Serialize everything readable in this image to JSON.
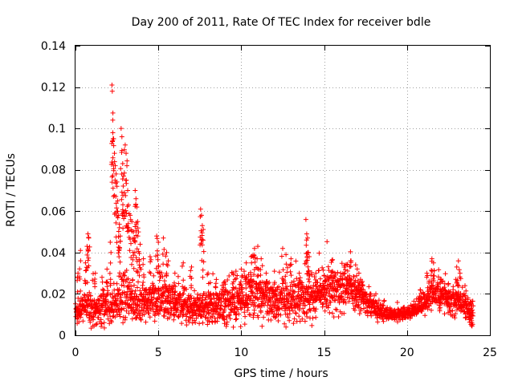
{
  "chart_data": {
    "type": "scatter",
    "title": "Day 200 of 2011, Rate Of TEC Index for receiver bdle",
    "xlabel": "GPS time / hours",
    "ylabel": "ROTI / TECUs",
    "xlim": [
      0,
      25
    ],
    "ylim": [
      0,
      0.14
    ],
    "xticks": [
      "0",
      "5",
      "10",
      "15",
      "20",
      "25"
    ],
    "yticks": [
      "0",
      "0.02",
      "0.04",
      "0.06",
      "0.08",
      "0.1",
      "0.12",
      "0.14"
    ],
    "grid": true,
    "marker": "+",
    "series_color": "#ff0000",
    "baseline_profile": {
      "x": [
        0,
        0.5,
        1,
        1.5,
        2,
        2.5,
        3,
        3.5,
        4,
        4.5,
        5,
        5.5,
        6,
        6.5,
        7,
        7.5,
        8,
        8.5,
        9,
        9.5,
        10,
        10.5,
        11,
        11.5,
        12,
        12.5,
        13,
        13.5,
        14,
        14.5,
        15,
        15.5,
        16,
        16.5,
        17,
        17.5,
        18,
        18.5,
        19,
        19.5,
        20,
        20.5,
        21,
        21.5,
        22,
        22.5,
        23,
        23.5,
        24
      ],
      "y": [
        0.011,
        0.014,
        0.013,
        0.012,
        0.014,
        0.016,
        0.018,
        0.016,
        0.015,
        0.016,
        0.018,
        0.017,
        0.015,
        0.014,
        0.013,
        0.012,
        0.013,
        0.014,
        0.014,
        0.015,
        0.016,
        0.018,
        0.019,
        0.017,
        0.016,
        0.016,
        0.017,
        0.017,
        0.018,
        0.02,
        0.022,
        0.021,
        0.022,
        0.024,
        0.02,
        0.017,
        0.013,
        0.011,
        0.01,
        0.01,
        0.011,
        0.012,
        0.015,
        0.022,
        0.019,
        0.017,
        0.017,
        0.015,
        0.01
      ],
      "spread": [
        0.006,
        0.008,
        0.009,
        0.008,
        0.009,
        0.011,
        0.012,
        0.011,
        0.01,
        0.011,
        0.012,
        0.011,
        0.01,
        0.009,
        0.009,
        0.008,
        0.009,
        0.009,
        0.009,
        0.01,
        0.011,
        0.012,
        0.012,
        0.011,
        0.01,
        0.01,
        0.01,
        0.011,
        0.011,
        0.011,
        0.012,
        0.012,
        0.012,
        0.012,
        0.01,
        0.008,
        0.005,
        0.004,
        0.003,
        0.003,
        0.003,
        0.004,
        0.006,
        0.009,
        0.008,
        0.007,
        0.008,
        0.007,
        0.005
      ]
    },
    "peaks": [
      {
        "x": 0.15,
        "y": 0.03
      },
      {
        "x": 0.3,
        "y": 0.041
      },
      {
        "x": 0.6,
        "y": 0.035
      },
      {
        "x": 0.7,
        "y": 0.043
      },
      {
        "x": 0.75,
        "y": 0.049
      },
      {
        "x": 0.8,
        "y": 0.047
      },
      {
        "x": 1.2,
        "y": 0.03
      },
      {
        "x": 1.6,
        "y": 0.028
      },
      {
        "x": 1.9,
        "y": 0.032
      },
      {
        "x": 2.1,
        "y": 0.045
      },
      {
        "x": 2.2,
        "y": 0.121
      },
      {
        "x": 2.22,
        "y": 0.118
      },
      {
        "x": 2.25,
        "y": 0.104
      },
      {
        "x": 2.3,
        "y": 0.095
      },
      {
        "x": 2.35,
        "y": 0.088
      },
      {
        "x": 2.4,
        "y": 0.082
      },
      {
        "x": 2.45,
        "y": 0.078
      },
      {
        "x": 2.5,
        "y": 0.072
      },
      {
        "x": 2.55,
        "y": 0.065
      },
      {
        "x": 2.6,
        "y": 0.058
      },
      {
        "x": 2.65,
        "y": 0.052
      },
      {
        "x": 2.7,
        "y": 0.048
      },
      {
        "x": 2.75,
        "y": 0.1
      },
      {
        "x": 2.8,
        "y": 0.096
      },
      {
        "x": 2.85,
        "y": 0.083
      },
      {
        "x": 2.9,
        "y": 0.077
      },
      {
        "x": 2.95,
        "y": 0.069
      },
      {
        "x": 3.0,
        "y": 0.092
      },
      {
        "x": 3.05,
        "y": 0.088
      },
      {
        "x": 3.1,
        "y": 0.082
      },
      {
        "x": 3.15,
        "y": 0.07
      },
      {
        "x": 3.2,
        "y": 0.063
      },
      {
        "x": 3.3,
        "y": 0.058
      },
      {
        "x": 3.4,
        "y": 0.055
      },
      {
        "x": 3.5,
        "y": 0.05
      },
      {
        "x": 3.55,
        "y": 0.047
      },
      {
        "x": 3.6,
        "y": 0.07
      },
      {
        "x": 3.65,
        "y": 0.066
      },
      {
        "x": 3.7,
        "y": 0.062
      },
      {
        "x": 3.75,
        "y": 0.055
      },
      {
        "x": 3.8,
        "y": 0.05
      },
      {
        "x": 3.9,
        "y": 0.044
      },
      {
        "x": 4.1,
        "y": 0.037
      },
      {
        "x": 4.5,
        "y": 0.038
      },
      {
        "x": 4.9,
        "y": 0.048
      },
      {
        "x": 5.0,
        "y": 0.045
      },
      {
        "x": 5.3,
        "y": 0.047
      },
      {
        "x": 5.5,
        "y": 0.04
      },
      {
        "x": 5.6,
        "y": 0.036
      },
      {
        "x": 6.0,
        "y": 0.03
      },
      {
        "x": 6.5,
        "y": 0.035
      },
      {
        "x": 7.0,
        "y": 0.033
      },
      {
        "x": 7.55,
        "y": 0.061
      },
      {
        "x": 7.6,
        "y": 0.058
      },
      {
        "x": 7.65,
        "y": 0.053
      },
      {
        "x": 7.7,
        "y": 0.046
      },
      {
        "x": 8.0,
        "y": 0.03
      },
      {
        "x": 8.5,
        "y": 0.027
      },
      {
        "x": 9.0,
        "y": 0.026
      },
      {
        "x": 9.5,
        "y": 0.03
      },
      {
        "x": 10.0,
        "y": 0.032
      },
      {
        "x": 10.3,
        "y": 0.035
      },
      {
        "x": 10.6,
        "y": 0.038
      },
      {
        "x": 10.8,
        "y": 0.042
      },
      {
        "x": 11.0,
        "y": 0.043
      },
      {
        "x": 11.2,
        "y": 0.037
      },
      {
        "x": 11.5,
        "y": 0.03
      },
      {
        "x": 12.0,
        "y": 0.031
      },
      {
        "x": 12.5,
        "y": 0.042
      },
      {
        "x": 12.7,
        "y": 0.039
      },
      {
        "x": 13.0,
        "y": 0.037
      },
      {
        "x": 13.5,
        "y": 0.03
      },
      {
        "x": 13.9,
        "y": 0.056
      },
      {
        "x": 13.95,
        "y": 0.049
      },
      {
        "x": 14.0,
        "y": 0.047
      },
      {
        "x": 14.05,
        "y": 0.04
      },
      {
        "x": 14.1,
        "y": 0.038
      },
      {
        "x": 14.5,
        "y": 0.03
      },
      {
        "x": 15.0,
        "y": 0.029
      },
      {
        "x": 15.5,
        "y": 0.031
      },
      {
        "x": 16.0,
        "y": 0.03
      },
      {
        "x": 16.4,
        "y": 0.034
      },
      {
        "x": 16.6,
        "y": 0.036
      },
      {
        "x": 16.9,
        "y": 0.034
      },
      {
        "x": 17.1,
        "y": 0.03
      },
      {
        "x": 17.3,
        "y": 0.026
      },
      {
        "x": 20.8,
        "y": 0.022
      },
      {
        "x": 21.2,
        "y": 0.03
      },
      {
        "x": 21.5,
        "y": 0.037
      },
      {
        "x": 21.6,
        "y": 0.035
      },
      {
        "x": 22.0,
        "y": 0.027
      },
      {
        "x": 22.5,
        "y": 0.025
      },
      {
        "x": 23.0,
        "y": 0.033
      },
      {
        "x": 23.1,
        "y": 0.036
      },
      {
        "x": 23.2,
        "y": 0.03
      },
      {
        "x": 23.5,
        "y": 0.024
      },
      {
        "x": 23.8,
        "y": 0.012
      },
      {
        "x": 23.9,
        "y": 0.007
      }
    ],
    "point_count": 2400
  }
}
